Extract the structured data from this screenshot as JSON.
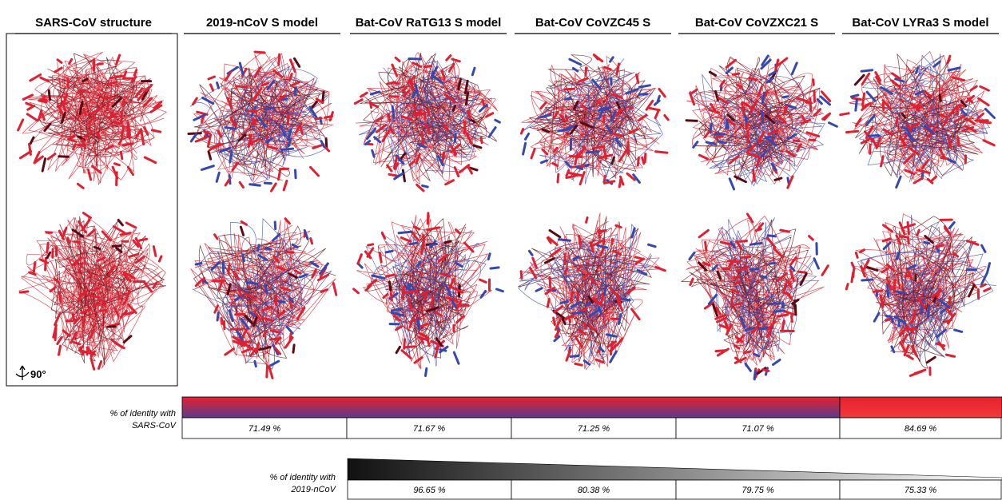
{
  "columns": [
    "SARS-CoV structure",
    "2019-nCoV S model",
    "Bat-CoV RaTG13 S model",
    "Bat-CoV CoVZC45 S",
    "Bat-CoV CoVZXC21 S",
    "Bat-CoV LYRa3 S model"
  ],
  "rotation_label": "90°",
  "identity_sars": {
    "label_lines": [
      "% of identity with",
      "SARS-CoV"
    ],
    "values": [
      "71.49 %",
      "71.67 %",
      "71.25 %",
      "71.07 %",
      "84.69 %"
    ]
  },
  "identity_ncov": {
    "label_lines": [
      "% of identity with",
      "2019-nCoV"
    ],
    "values": [
      "96.65 %",
      "80.38 %",
      "79.75 %",
      "75.33 %"
    ]
  }
}
